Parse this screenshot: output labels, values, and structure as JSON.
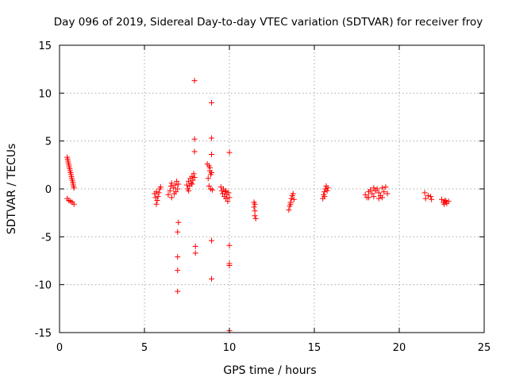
{
  "chart_data": {
    "type": "scatter",
    "title": "Day 096 of 2019, Sidereal Day-to-day VTEC variation (SDTVAR) for receiver froy",
    "xlabel": "GPS time / hours",
    "ylabel": "SDTVAR / TECUs",
    "xlim": [
      0,
      25
    ],
    "ylim": [
      -15,
      15
    ],
    "x_ticks": [
      0,
      5,
      10,
      15,
      20,
      25
    ],
    "y_ticks": [
      -15,
      -10,
      -5,
      0,
      5,
      10,
      15
    ],
    "x_tick_labels": [
      "0",
      "5",
      "10",
      "15",
      "20",
      "25"
    ],
    "y_tick_labels": [
      "-15",
      "-10",
      "-5",
      "0",
      "5",
      "10",
      "15"
    ],
    "grid": true,
    "marker": "plus",
    "colors": {
      "series": "#ff0000",
      "grid": "#aaaaaa",
      "axis": "#000000"
    },
    "series": [
      {
        "name": "SDTVAR",
        "points": [
          [
            0.45,
            3.3
          ],
          [
            0.48,
            3.1
          ],
          [
            0.5,
            2.9
          ],
          [
            0.52,
            2.7
          ],
          [
            0.55,
            2.5
          ],
          [
            0.57,
            2.3
          ],
          [
            0.6,
            2.1
          ],
          [
            0.62,
            1.9
          ],
          [
            0.65,
            1.7
          ],
          [
            0.68,
            1.5
          ],
          [
            0.7,
            1.3
          ],
          [
            0.72,
            1.1
          ],
          [
            0.75,
            0.9
          ],
          [
            0.78,
            0.7
          ],
          [
            0.8,
            0.5
          ],
          [
            0.82,
            0.3
          ],
          [
            0.85,
            0.1
          ],
          [
            0.45,
            -1.0
          ],
          [
            0.55,
            -1.2
          ],
          [
            0.65,
            -1.3
          ],
          [
            0.75,
            -1.4
          ],
          [
            0.85,
            -1.6
          ],
          [
            5.7,
            -1.6
          ],
          [
            5.75,
            -1.2
          ],
          [
            5.8,
            -0.8
          ],
          [
            5.85,
            -0.4
          ],
          [
            5.9,
            0.0
          ],
          [
            5.95,
            0.2
          ],
          [
            5.6,
            -0.5
          ],
          [
            5.65,
            -0.9
          ],
          [
            5.7,
            -0.3
          ],
          [
            6.4,
            -0.6
          ],
          [
            6.5,
            -0.2
          ],
          [
            6.55,
            0.3
          ],
          [
            6.6,
            0.6
          ],
          [
            6.7,
            0.1
          ],
          [
            6.75,
            -0.5
          ],
          [
            6.8,
            0.4
          ],
          [
            6.9,
            0.8
          ],
          [
            6.95,
            0.0
          ],
          [
            6.6,
            -0.9
          ],
          [
            6.85,
            -0.3
          ],
          [
            7.0,
            0.5
          ],
          [
            7.0,
            -3.5
          ],
          [
            6.95,
            -4.5
          ],
          [
            6.95,
            -7.1
          ],
          [
            6.95,
            -8.5
          ],
          [
            6.95,
            -10.7
          ],
          [
            7.5,
            0.4
          ],
          [
            7.6,
            0.8
          ],
          [
            7.7,
            1.1
          ],
          [
            7.8,
            1.3
          ],
          [
            7.9,
            1.6
          ],
          [
            7.55,
            0.0
          ],
          [
            7.65,
            0.3
          ],
          [
            7.75,
            0.6
          ],
          [
            7.85,
            0.9
          ],
          [
            7.95,
            1.2
          ],
          [
            7.6,
            -0.2
          ],
          [
            7.8,
            0.5
          ],
          [
            7.95,
            11.3
          ],
          [
            7.95,
            5.2
          ],
          [
            7.95,
            3.9
          ],
          [
            8.0,
            -6.0
          ],
          [
            8.0,
            -6.7
          ],
          [
            8.7,
            2.6
          ],
          [
            8.8,
            2.4
          ],
          [
            8.85,
            1.9
          ],
          [
            8.9,
            1.5
          ],
          [
            8.75,
            1.1
          ],
          [
            8.8,
            0.3
          ],
          [
            8.9,
            0.0
          ],
          [
            9.0,
            -0.1
          ],
          [
            8.95,
            1.7
          ],
          [
            8.85,
            2.2
          ],
          [
            8.95,
            9.0
          ],
          [
            8.95,
            5.3
          ],
          [
            8.95,
            3.6
          ],
          [
            8.95,
            -5.4
          ],
          [
            8.95,
            -9.4
          ],
          [
            9.5,
            0.2
          ],
          [
            9.55,
            -0.2
          ],
          [
            9.6,
            -0.5
          ],
          [
            9.7,
            -0.8
          ],
          [
            9.75,
            -0.3
          ],
          [
            9.8,
            -1.0
          ],
          [
            9.85,
            -0.6
          ],
          [
            9.9,
            -1.3
          ],
          [
            9.95,
            -0.4
          ],
          [
            10.0,
            -0.9
          ],
          [
            9.65,
            0.0
          ],
          [
            9.8,
            -0.2
          ],
          [
            10.0,
            3.8
          ],
          [
            10.0,
            -5.9
          ],
          [
            10.0,
            -7.8
          ],
          [
            10.0,
            -8.0
          ],
          [
            10.0,
            -14.8
          ],
          [
            11.45,
            -1.4
          ],
          [
            11.45,
            -1.9
          ],
          [
            11.5,
            -2.3
          ],
          [
            11.5,
            -2.8
          ],
          [
            11.55,
            -3.1
          ],
          [
            11.5,
            -1.6
          ],
          [
            13.5,
            -2.2
          ],
          [
            13.55,
            -1.8
          ],
          [
            13.6,
            -1.4
          ],
          [
            13.65,
            -1.0
          ],
          [
            13.7,
            -0.7
          ],
          [
            13.75,
            -0.5
          ],
          [
            13.8,
            -1.1
          ],
          [
            13.6,
            -1.6
          ],
          [
            15.5,
            -1.0
          ],
          [
            15.55,
            -0.6
          ],
          [
            15.6,
            -0.3
          ],
          [
            15.65,
            0.0
          ],
          [
            15.7,
            0.3
          ],
          [
            15.75,
            -0.2
          ],
          [
            15.8,
            0.1
          ],
          [
            15.6,
            -0.8
          ],
          [
            18.0,
            -0.6
          ],
          [
            18.1,
            -0.9
          ],
          [
            18.2,
            -0.3
          ],
          [
            18.3,
            -0.1
          ],
          [
            18.4,
            -0.5
          ],
          [
            18.5,
            -0.8
          ],
          [
            18.6,
            -0.2
          ],
          [
            18.7,
            0.0
          ],
          [
            18.8,
            -0.4
          ],
          [
            18.9,
            -0.7
          ],
          [
            19.0,
            0.1
          ],
          [
            19.1,
            -0.3
          ],
          [
            19.2,
            0.2
          ],
          [
            19.3,
            -0.5
          ],
          [
            18.5,
            0.1
          ],
          [
            18.8,
            -1.0
          ],
          [
            19.0,
            -0.9
          ],
          [
            18.2,
            -0.9
          ],
          [
            21.5,
            -0.4
          ],
          [
            21.55,
            -1.0
          ],
          [
            21.7,
            -0.7
          ],
          [
            21.85,
            -0.8
          ],
          [
            21.9,
            -1.1
          ],
          [
            22.5,
            -1.1
          ],
          [
            22.6,
            -1.4
          ],
          [
            22.7,
            -1.2
          ],
          [
            22.8,
            -1.5
          ],
          [
            22.9,
            -1.3
          ],
          [
            22.65,
            -1.6
          ],
          [
            22.75,
            -1.3
          ]
        ]
      }
    ]
  }
}
